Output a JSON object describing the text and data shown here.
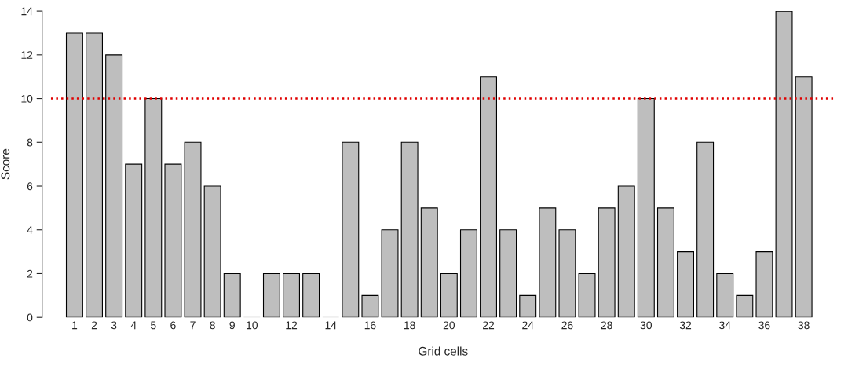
{
  "chart_data": {
    "type": "bar",
    "xlabel": "Grid cells",
    "ylabel": "Score",
    "categories": [
      "1",
      "2",
      "3",
      "4",
      "5",
      "6",
      "7",
      "8",
      "9",
      "10",
      null,
      "12",
      null,
      "14",
      null,
      "16",
      null,
      "18",
      null,
      "20",
      null,
      "22",
      null,
      "24",
      null,
      "26",
      null,
      "28",
      null,
      "30",
      null,
      "32",
      null,
      "34",
      null,
      "36",
      null,
      "38"
    ],
    "values": [
      13,
      13,
      12,
      7,
      10,
      7,
      8,
      6,
      2,
      0,
      2,
      2,
      2,
      0,
      8,
      1,
      4,
      8,
      5,
      2,
      4,
      11,
      4,
      1,
      5,
      4,
      2,
      5,
      6,
      10,
      5,
      3,
      8,
      2,
      1,
      3,
      14,
      11
    ],
    "color": "#bebebe",
    "ylim": [
      0,
      14
    ],
    "yticks": [
      0,
      2,
      4,
      6,
      8,
      10,
      12,
      14
    ],
    "ref_lines": [
      {
        "axis": "y",
        "value": 10,
        "color": "#e00000",
        "line_style": "dotted"
      }
    ],
    "grid": false
  }
}
